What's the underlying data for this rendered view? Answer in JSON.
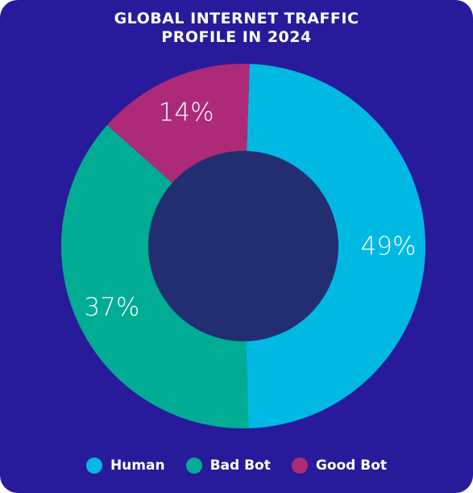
{
  "title": {
    "line1": "GLOBAL INTERNET TRAFFIC",
    "line2": "PROFILE IN 2024"
  },
  "chart_data": {
    "type": "pie",
    "variant": "donut",
    "categories": [
      "Human",
      "Bad Bot",
      "Good Bot"
    ],
    "values": [
      49,
      37,
      14
    ],
    "value_labels": [
      "49%",
      "37%",
      "14%"
    ],
    "unit": "%",
    "colors": [
      "#00b9e3",
      "#00ad94",
      "#ad2a78"
    ],
    "center_color": "#232e72",
    "background_color": "#271b9c",
    "legend_position": "bottom"
  },
  "legend": [
    {
      "label": "Human",
      "color": "#00b9e3"
    },
    {
      "label": "Bad Bot",
      "color": "#00ad94"
    },
    {
      "label": "Good Bot",
      "color": "#ad2a78"
    }
  ]
}
